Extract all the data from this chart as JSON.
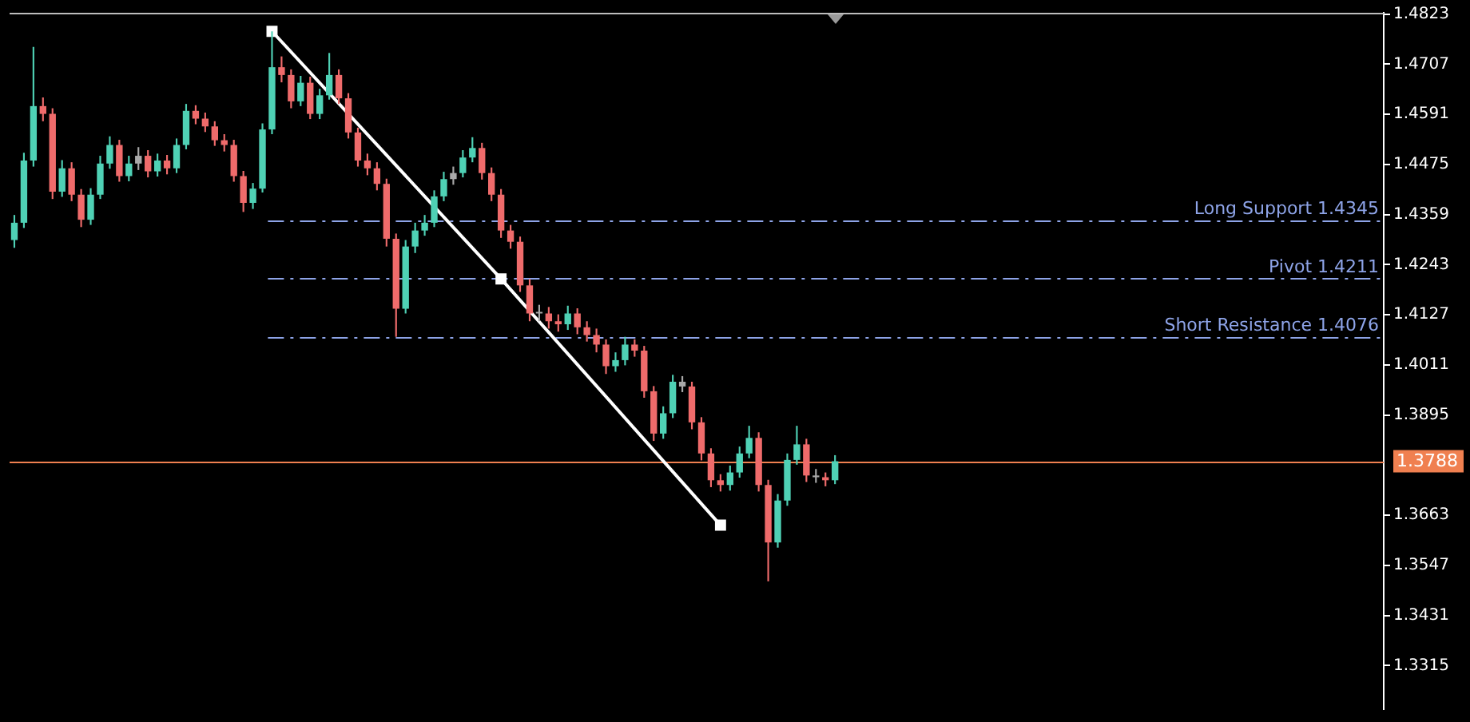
{
  "chart_data": {
    "type": "candlestick",
    "categories": [
      null,
      null,
      null,
      null,
      null,
      null,
      null,
      null,
      null,
      null,
      null,
      null,
      null,
      null,
      null,
      null,
      null,
      null,
      null,
      null,
      null,
      null,
      null,
      null,
      null,
      null,
      null,
      null,
      null,
      null,
      null,
      null,
      null,
      null,
      null,
      null,
      null,
      null,
      null,
      null,
      null,
      null,
      null,
      null,
      null,
      null,
      null,
      null,
      null,
      null,
      null,
      null,
      null,
      null,
      null,
      null,
      null,
      null,
      null,
      null,
      null,
      null,
      null,
      null,
      null,
      null,
      null,
      null,
      null,
      null,
      null,
      null,
      null,
      null,
      null,
      null,
      null,
      null,
      null,
      null,
      null,
      null,
      null,
      null,
      null,
      null,
      null,
      null,
      null,
      null,
      null,
      null,
      null,
      null,
      null,
      null,
      null,
      null,
      null,
      null,
      null,
      null,
      null,
      null,
      null,
      null,
      null,
      null,
      null,
      null,
      null,
      null,
      null,
      null,
      null,
      null,
      null,
      null,
      null,
      null,
      null,
      null,
      null,
      null,
      null,
      null,
      null,
      null,
      null,
      null,
      null,
      null,
      null,
      null,
      null,
      null,
      null,
      null,
      null,
      null,
      null,
      null,
      null,
      null
    ],
    "ohlc": [
      [
        1.43,
        1.4358,
        1.4282,
        1.434
      ],
      [
        1.434,
        1.4502,
        1.4328,
        1.4484
      ],
      [
        1.4484,
        1.4747,
        1.447,
        1.461
      ],
      [
        1.461,
        1.463,
        1.4575,
        1.4592
      ],
      [
        1.4592,
        1.4605,
        1.4395,
        1.4412
      ],
      [
        1.4412,
        1.4485,
        1.44,
        1.4466
      ],
      [
        1.4466,
        1.448,
        1.439,
        1.4405
      ],
      [
        1.4405,
        1.4418,
        1.433,
        1.4347
      ],
      [
        1.4347,
        1.442,
        1.4335,
        1.4405
      ],
      [
        1.4405,
        1.4495,
        1.4395,
        1.4477
      ],
      [
        1.4477,
        1.454,
        1.4465,
        1.452
      ],
      [
        1.452,
        1.4532,
        1.4435,
        1.4448
      ],
      [
        1.4448,
        1.4495,
        1.4436,
        1.4477
      ],
      [
        1.4477,
        1.4515,
        1.4462,
        1.4495
      ],
      [
        1.4495,
        1.4508,
        1.4445,
        1.4459
      ],
      [
        1.4459,
        1.45,
        1.4447,
        1.4484
      ],
      [
        1.4484,
        1.4497,
        1.4452,
        1.4466
      ],
      [
        1.4466,
        1.4535,
        1.4455,
        1.452
      ],
      [
        1.452,
        1.4615,
        1.451,
        1.4599
      ],
      [
        1.4599,
        1.4612,
        1.4568,
        1.4581
      ],
      [
        1.4581,
        1.4595,
        1.455,
        1.4563
      ],
      [
        1.4563,
        1.4575,
        1.4518,
        1.4531
      ],
      [
        1.4531,
        1.4545,
        1.4505,
        1.452
      ],
      [
        1.452,
        1.4532,
        1.4435,
        1.4448
      ],
      [
        1.4448,
        1.446,
        1.4365,
        1.4386
      ],
      [
        1.4386,
        1.4432,
        1.4372,
        1.4419
      ],
      [
        1.4419,
        1.457,
        1.441,
        1.4556
      ],
      [
        1.4556,
        1.4783,
        1.4545,
        1.47
      ],
      [
        1.47,
        1.4725,
        1.4665,
        1.4682
      ],
      [
        1.4682,
        1.4695,
        1.4605,
        1.4621
      ],
      [
        1.4621,
        1.468,
        1.461,
        1.4664
      ],
      [
        1.4664,
        1.4678,
        1.458,
        1.4592
      ],
      [
        1.4592,
        1.465,
        1.458,
        1.4635
      ],
      [
        1.4635,
        1.4733,
        1.4625,
        1.4682
      ],
      [
        1.4682,
        1.4695,
        1.4615,
        1.4628
      ],
      [
        1.4628,
        1.464,
        1.4535,
        1.4549
      ],
      [
        1.4549,
        1.456,
        1.447,
        1.4484
      ],
      [
        1.4484,
        1.45,
        1.445,
        1.4466
      ],
      [
        1.4466,
        1.448,
        1.4415,
        1.443
      ],
      [
        1.443,
        1.4442,
        1.4285,
        1.4303
      ],
      [
        1.4303,
        1.4315,
        1.4076,
        1.4141
      ],
      [
        1.4141,
        1.43,
        1.413,
        1.4285
      ],
      [
        1.4285,
        1.434,
        1.427,
        1.4322
      ],
      [
        1.4322,
        1.4358,
        1.431,
        1.434
      ],
      [
        1.434,
        1.4415,
        1.433,
        1.4401
      ],
      [
        1.4401,
        1.4458,
        1.439,
        1.4441
      ],
      [
        1.4441,
        1.447,
        1.4428,
        1.4455
      ],
      [
        1.4455,
        1.4508,
        1.4445,
        1.4491
      ],
      [
        1.4491,
        1.4538,
        1.448,
        1.4513
      ],
      [
        1.4513,
        1.4525,
        1.444,
        1.4455
      ],
      [
        1.4455,
        1.4468,
        1.439,
        1.4405
      ],
      [
        1.4405,
        1.4418,
        1.4305,
        1.4322
      ],
      [
        1.4322,
        1.4335,
        1.428,
        1.4296
      ],
      [
        1.4296,
        1.4308,
        1.418,
        1.4195
      ],
      [
        1.4195,
        1.421,
        1.4112,
        1.413
      ],
      [
        1.413,
        1.415,
        1.4112,
        1.413
      ],
      [
        1.413,
        1.4145,
        1.4095,
        1.4112
      ],
      [
        1.4112,
        1.4128,
        1.4088,
        1.4105
      ],
      [
        1.4105,
        1.4148,
        1.4092,
        1.413
      ],
      [
        1.413,
        1.4142,
        1.4082,
        1.4098
      ],
      [
        1.4098,
        1.4112,
        1.4065,
        1.408
      ],
      [
        1.408,
        1.4095,
        1.404,
        1.4058
      ],
      [
        1.4058,
        1.407,
        1.399,
        1.4008
      ],
      [
        1.4008,
        1.404,
        1.3995,
        1.4022
      ],
      [
        1.4022,
        1.4076,
        1.401,
        1.4058
      ],
      [
        1.4058,
        1.407,
        1.403,
        1.4044
      ],
      [
        1.4044,
        1.4055,
        1.3935,
        1.395
      ],
      [
        1.395,
        1.3962,
        1.3835,
        1.3852
      ],
      [
        1.3852,
        1.3915,
        1.384,
        1.3899
      ],
      [
        1.3899,
        1.3988,
        1.3888,
        1.3972
      ],
      [
        1.3972,
        1.3985,
        1.3948,
        1.3961
      ],
      [
        1.3961,
        1.3972,
        1.3862,
        1.3878
      ],
      [
        1.3878,
        1.389,
        1.379,
        1.3806
      ],
      [
        1.3806,
        1.3818,
        1.3728,
        1.3744
      ],
      [
        1.3744,
        1.3758,
        1.3718,
        1.3733
      ],
      [
        1.3733,
        1.3778,
        1.372,
        1.3762
      ],
      [
        1.3762,
        1.3822,
        1.375,
        1.3806
      ],
      [
        1.3806,
        1.387,
        1.3795,
        1.3842
      ],
      [
        1.3842,
        1.3855,
        1.3718,
        1.3733
      ],
      [
        1.3733,
        1.3745,
        1.351,
        1.36
      ],
      [
        1.36,
        1.3712,
        1.3588,
        1.3697
      ],
      [
        1.3697,
        1.3806,
        1.3685,
        1.3791
      ],
      [
        1.3791,
        1.387,
        1.378,
        1.3827
      ],
      [
        1.3827,
        1.384,
        1.374,
        1.3755
      ],
      [
        1.3755,
        1.377,
        1.3738,
        1.3751
      ],
      [
        1.3751,
        1.3762,
        1.373,
        1.3744
      ],
      [
        1.3744,
        1.3802,
        1.3735,
        1.3788
      ],
      null,
      null,
      null,
      null,
      null,
      null,
      null,
      null,
      null,
      null,
      null,
      null,
      null,
      null,
      null,
      null,
      null,
      null,
      null,
      null,
      null,
      null,
      null,
      null,
      null,
      null,
      null,
      null,
      null,
      null,
      null,
      null,
      null,
      null,
      null,
      null,
      null,
      null,
      null,
      null,
      null,
      null,
      null,
      null,
      null,
      null,
      null,
      null,
      null,
      null,
      null,
      null,
      null,
      null,
      null,
      null,
      null
    ],
    "colors": [
      "#4fd1b5",
      "#4fd1b5",
      "#4fd1b5",
      "#ef6b6b",
      "#ef6b6b",
      "#4fd1b5",
      "#ef6b6b",
      "#ef6b6b",
      "#4fd1b5",
      "#4fd1b5",
      "#4fd1b5",
      "#ef6b6b",
      "#4fd1b5",
      "#a9a9a9",
      "#ef6b6b",
      "#4fd1b5",
      "#ef6b6b",
      "#4fd1b5",
      "#4fd1b5",
      "#ef6b6b",
      "#ef6b6b",
      "#ef6b6b",
      "#ef6b6b",
      "#ef6b6b",
      "#ef6b6b",
      "#4fd1b5",
      "#4fd1b5",
      "#4fd1b5",
      "#ef6b6b",
      "#ef6b6b",
      "#4fd1b5",
      "#ef6b6b",
      "#4fd1b5",
      "#4fd1b5",
      "#ef6b6b",
      "#ef6b6b",
      "#ef6b6b",
      "#ef6b6b",
      "#ef6b6b",
      "#ef6b6b",
      "#ef6b6b",
      "#4fd1b5",
      "#4fd1b5",
      "#4fd1b5",
      "#4fd1b5",
      "#4fd1b5",
      "#a9a9a9",
      "#4fd1b5",
      "#4fd1b5",
      "#ef6b6b",
      "#ef6b6b",
      "#ef6b6b",
      "#ef6b6b",
      "#ef6b6b",
      "#ef6b6b",
      "#a9a9a9",
      "#ef6b6b",
      "#ef6b6b",
      "#4fd1b5",
      "#ef6b6b",
      "#ef6b6b",
      "#ef6b6b",
      "#ef6b6b",
      "#4fd1b5",
      "#4fd1b5",
      "#ef6b6b",
      "#ef6b6b",
      "#ef6b6b",
      "#4fd1b5",
      "#4fd1b5",
      "#a9a9a9",
      "#ef6b6b",
      "#ef6b6b",
      "#ef6b6b",
      "#ef6b6b",
      "#4fd1b5",
      "#4fd1b5",
      "#4fd1b5",
      "#ef6b6b",
      "#ef6b6b",
      "#4fd1b5",
      "#4fd1b5",
      "#4fd1b5",
      "#ef6b6b",
      "#a9a9a9",
      "#ef6b6b",
      "#4fd1b5",
      null,
      null,
      null,
      null,
      null,
      null,
      null,
      null,
      null,
      null,
      null,
      null,
      null,
      null,
      null,
      null,
      null,
      null,
      null,
      null,
      null,
      null,
      null,
      null,
      null,
      null,
      null,
      null,
      null,
      null,
      null,
      null,
      null,
      null,
      null,
      null,
      null,
      null,
      null,
      null,
      null,
      null,
      null,
      null,
      null,
      null,
      null,
      null,
      null,
      null,
      null,
      null,
      null,
      null,
      null,
      null,
      null
    ],
    "series": [
      {
        "type": "line",
        "color": "#ffffff",
        "marker": "square",
        "values": [
          null,
          null,
          null,
          null,
          null,
          null,
          null,
          null,
          null,
          null,
          null,
          null,
          null,
          null,
          null,
          null,
          null,
          null,
          null,
          null,
          null,
          null,
          null,
          null,
          null,
          null,
          null,
          1.4783,
          null,
          null,
          null,
          null,
          null,
          null,
          null,
          null,
          null,
          null,
          null,
          null,
          null,
          null,
          null,
          null,
          null,
          null,
          null,
          null,
          null,
          null,
          null,
          1.421,
          null,
          null,
          null,
          null,
          null,
          null,
          null,
          null,
          null,
          null,
          null,
          null,
          null,
          null,
          null,
          null,
          null,
          null,
          null,
          null,
          null,
          null,
          1.364,
          null,
          null,
          null,
          null,
          null,
          null,
          null,
          null,
          null,
          null,
          null,
          null,
          null,
          null,
          null,
          null,
          null,
          null,
          null,
          null,
          null,
          null,
          null,
          null,
          null,
          null,
          null,
          null,
          null,
          null,
          null,
          null,
          null,
          null,
          null,
          null,
          null,
          null,
          null,
          null,
          null,
          null,
          null,
          null,
          null,
          null,
          null,
          null,
          null,
          null,
          null,
          null,
          null,
          null,
          null,
          null,
          null,
          null,
          null,
          null,
          null,
          null,
          null,
          null,
          null,
          null,
          null,
          null,
          null
        ]
      }
    ],
    "ylim": [
      1.3214,
      1.4826
    ],
    "yticks": [
      1.4823,
      1.4707,
      1.4591,
      1.4475,
      1.4359,
      1.4243,
      1.4127,
      1.4011,
      1.3895,
      1.3663,
      1.3547,
      1.3431,
      1.3315
    ],
    "tick_labels": "y",
    "grid": false,
    "legend": false,
    "ref_lines": [
      {
        "axis": "y",
        "value": 1.4345,
        "label": "Long Support 1.4345",
        "color": "#8ea4e8",
        "line_style": "dashed"
      },
      {
        "axis": "y",
        "value": 1.4211,
        "label": "Pivot 1.4211",
        "color": "#8ea4e8",
        "line_style": "dashed"
      },
      {
        "axis": "y",
        "value": 1.4076,
        "label": "Short Resistance 1.4076",
        "color": "#8ea4e8",
        "line_style": "dashed"
      },
      {
        "axis": "y",
        "value": 1.3788,
        "label": "1.3788",
        "color": "#f08050",
        "line_style": "solid"
      }
    ]
  }
}
